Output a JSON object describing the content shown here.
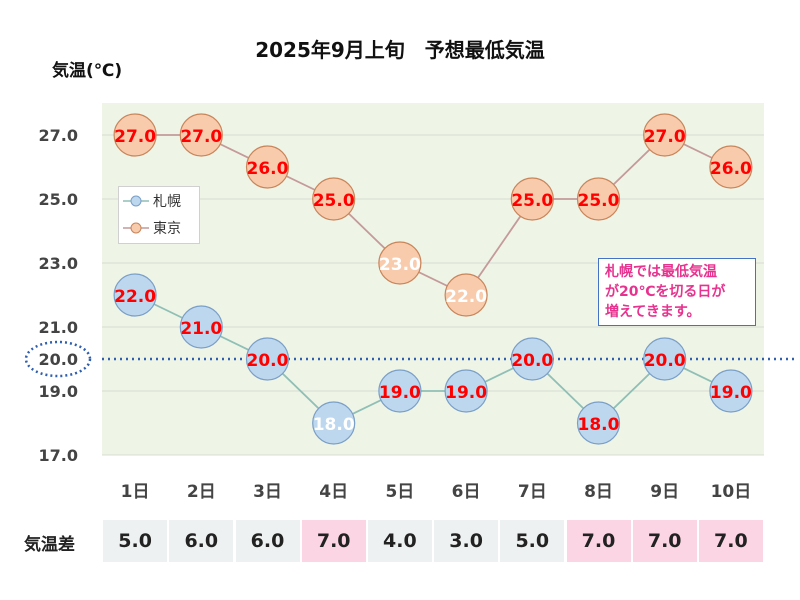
{
  "chart_data": {
    "type": "line",
    "title": "2025年9月上旬　予想最低気温",
    "ylabel": "気温(℃)",
    "categories": [
      "1日",
      "2日",
      "3日",
      "4日",
      "5日",
      "6日",
      "7日",
      "8日",
      "9日",
      "10日"
    ],
    "ylim": [
      17,
      28
    ],
    "yticks": [
      "17.0",
      "19.0",
      "20.0",
      "21.0",
      "23.0",
      "25.0",
      "27.0"
    ],
    "series": [
      {
        "name": "札幌",
        "values": [
          22.0,
          21.0,
          20.0,
          18.0,
          19.0,
          19.0,
          20.0,
          18.0,
          20.0,
          19.0
        ],
        "color": "#bdd7ee",
        "line": "#8fbfb5"
      },
      {
        "name": "東京",
        "values": [
          27.0,
          27.0,
          26.0,
          25.0,
          23.0,
          22.0,
          25.0,
          25.0,
          27.0,
          26.0
        ],
        "color": "#f8cbad",
        "line": "#c49a9a"
      }
    ],
    "reference_line": {
      "value": 20.0,
      "label": "20.0",
      "color": "#2f5fad"
    },
    "callout": [
      "札幌では最低気温",
      "が20℃を切る日が",
      "増えてきます。"
    ],
    "grid": true,
    "legend_position": "upper-left",
    "colors": {
      "plot_bg": "#eef4e6",
      "label_red": "#ff0000",
      "label_white": "#ffffff",
      "highlight": "#fcd5e5"
    }
  },
  "diff_table": {
    "label": "気温差",
    "values": [
      "5.0",
      "6.0",
      "6.0",
      "7.0",
      "4.0",
      "3.0",
      "5.0",
      "7.0",
      "7.0",
      "7.0"
    ],
    "highlighted": [
      false,
      false,
      false,
      true,
      false,
      false,
      false,
      true,
      true,
      true
    ]
  },
  "legend": {
    "sapporo": "札幌",
    "tokyo": "東京"
  }
}
